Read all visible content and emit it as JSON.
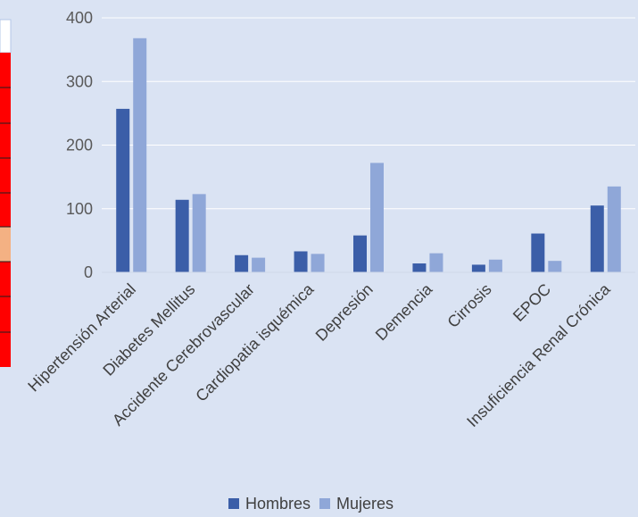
{
  "chart_data": {
    "type": "bar",
    "title": "",
    "xlabel": "",
    "ylabel": "",
    "ylim": [
      0,
      400
    ],
    "yticks": [
      0,
      100,
      200,
      300,
      400
    ],
    "grid": true,
    "legend_position": "bottom",
    "categories": [
      "Hipertensión Arterial",
      "Diabetes Mellitus",
      "Accidente Cerebrovascular",
      "Cardiopatia isquémica",
      "Depresión",
      "Demencia",
      "Cirrosis",
      "EPOC",
      "Insuficiencia Renal Crónica"
    ],
    "series": [
      {
        "name": "Hombres",
        "color": "#3b5ea8",
        "values": [
          257,
          114,
          27,
          33,
          58,
          14,
          12,
          61,
          105
        ]
      },
      {
        "name": "Mujeres",
        "color": "#8fa7d8",
        "values": [
          368,
          123,
          23,
          29,
          172,
          30,
          20,
          18,
          135
        ]
      }
    ]
  },
  "side_panel": {
    "border_color": "#ff0000",
    "accent_color": "#f4b183"
  }
}
